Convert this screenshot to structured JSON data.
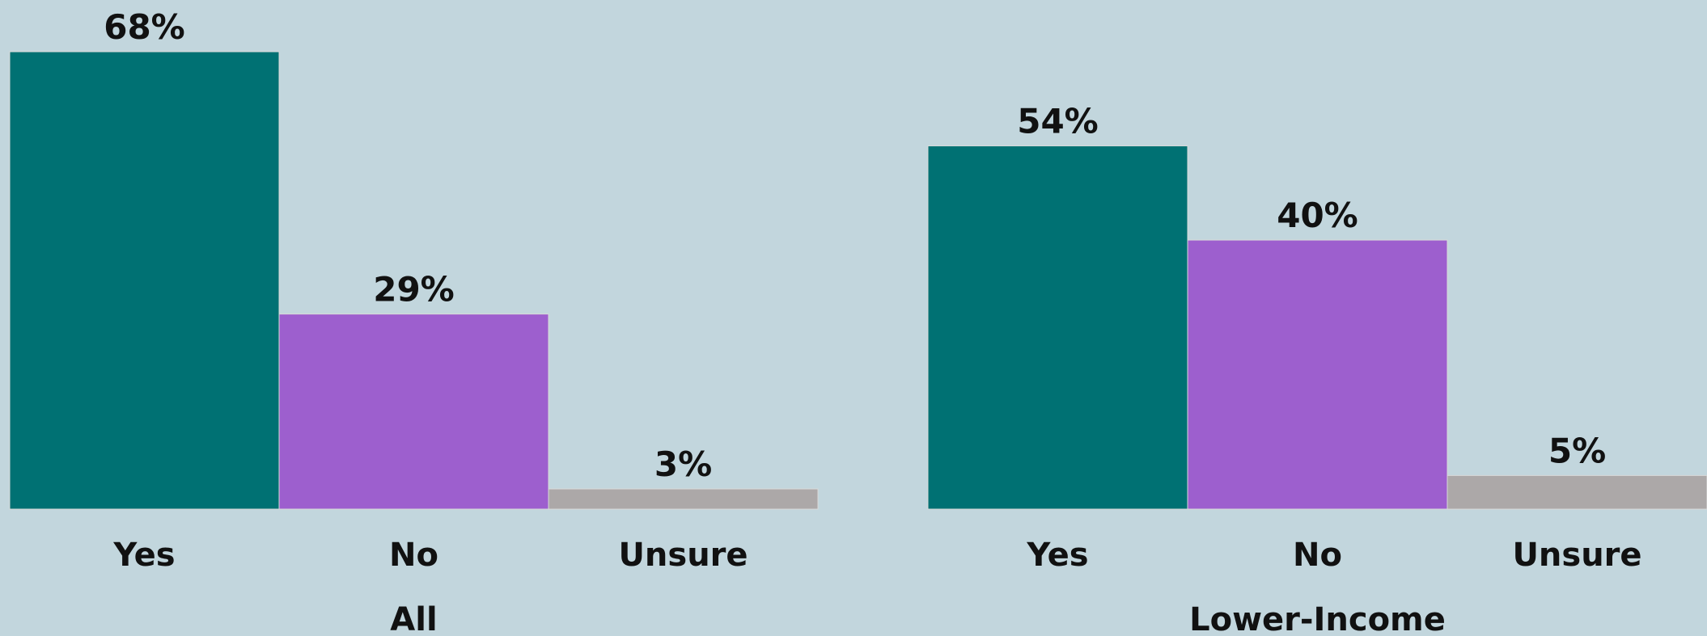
{
  "colors": {
    "background": "#c2d6dd",
    "yes": "#007173",
    "no": "#9d5fce",
    "unsure": "#aca8a8"
  },
  "chart_data": [
    {
      "type": "bar",
      "group_label": "All",
      "categories": [
        "Yes",
        "No",
        "Unsure"
      ],
      "values": [
        68,
        29,
        3
      ],
      "value_labels": [
        "68%",
        "29%",
        "3%"
      ],
      "colors": [
        "#007173",
        "#9d5fce",
        "#aca8a8"
      ],
      "ylim": [
        0,
        68
      ],
      "grid": false
    },
    {
      "type": "bar",
      "group_label": "Lower-Income",
      "categories": [
        "Yes",
        "No",
        "Unsure"
      ],
      "values": [
        54,
        40,
        5
      ],
      "value_labels": [
        "54%",
        "40%",
        "5%"
      ],
      "colors": [
        "#007173",
        "#9d5fce",
        "#aca8a8"
      ],
      "ylim": [
        0,
        68
      ],
      "grid": false
    }
  ]
}
